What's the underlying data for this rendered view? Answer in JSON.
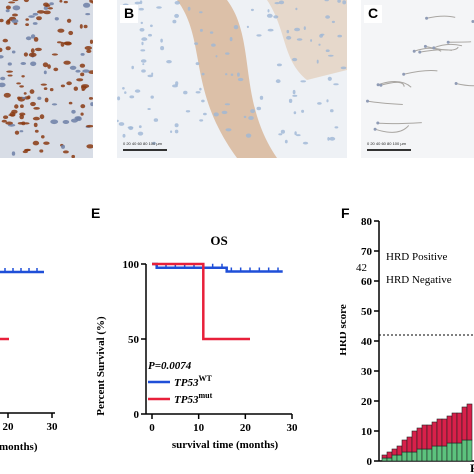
{
  "panels": {
    "B": {
      "letter": "B"
    },
    "C": {
      "letter": "C"
    },
    "E": {
      "letter": "E"
    },
    "F": {
      "letter": "F"
    }
  },
  "scale_bar": {
    "B_text": "0  20  40  60  80 100 µm",
    "C_text": "0  20  40  60  80 100 µm"
  },
  "partial_left": {
    "tick_20": "20",
    "tick_30": "30",
    "xlabel_fragment": "months)"
  },
  "colors": {
    "wt": "#1f4fd8",
    "mut": "#e8203a",
    "bar_green": "#5cc27d",
    "bar_red": "#d8204a",
    "ihc_brown": "#8a3a12",
    "ihc_blue": "#9db7d6"
  },
  "chart_data": [
    {
      "type": "line",
      "panel": "E",
      "title": "OS",
      "xlabel": "survival time (months)",
      "ylabel": "Percent Survival (%)",
      "xlim": [
        0,
        30
      ],
      "ylim": [
        0,
        100
      ],
      "x_ticks": [
        "0",
        "10",
        "20",
        "30"
      ],
      "y_ticks": [
        "0",
        "50",
        "100"
      ],
      "p_value": "P=0.0074",
      "series": [
        {
          "name": "TP53 WT",
          "name_base": "TP53",
          "name_sup": "WT",
          "steps": [
            [
              0,
              100
            ],
            [
              1,
              100
            ],
            [
              1,
              97.5
            ],
            [
              16,
              97.5
            ],
            [
              16,
              95
            ],
            [
              28,
              95
            ]
          ],
          "censor_x": [
            3,
            5,
            7,
            9,
            11,
            13,
            15,
            17,
            19,
            21,
            23,
            25,
            27
          ]
        },
        {
          "name": "TP53 mut",
          "name_base": "TP53",
          "name_sup": "mut",
          "steps": [
            [
              0,
              100
            ],
            [
              11,
              100
            ],
            [
              11,
              50
            ],
            [
              21,
              50
            ]
          ],
          "censor_x": []
        }
      ]
    },
    {
      "type": "bar",
      "panel": "F",
      "ylabel": "HRD score",
      "ylim": [
        0,
        80
      ],
      "y_ticks": [
        "0",
        "10",
        "20",
        "30",
        "40",
        "50",
        "60",
        "70",
        "80"
      ],
      "threshold": 42,
      "threshold_label": "42",
      "annotations": [
        "HRD Positive",
        "HRD Negative"
      ],
      "x_label_fragment": "P",
      "stacks": [
        {
          "green": 1,
          "red": 1
        },
        {
          "green": 1,
          "red": 2
        },
        {
          "green": 2,
          "red": 2
        },
        {
          "green": 2,
          "red": 3
        },
        {
          "green": 3,
          "red": 4
        },
        {
          "green": 3,
          "red": 5
        },
        {
          "green": 3,
          "red": 7
        },
        {
          "green": 4,
          "red": 7
        },
        {
          "green": 4,
          "red": 8
        },
        {
          "green": 4,
          "red": 8
        },
        {
          "green": 5,
          "red": 8
        },
        {
          "green": 5,
          "red": 9
        },
        {
          "green": 5,
          "red": 9
        },
        {
          "green": 6,
          "red": 9
        },
        {
          "green": 6,
          "red": 10
        },
        {
          "green": 6,
          "red": 10
        },
        {
          "green": 7,
          "red": 11
        },
        {
          "green": 7,
          "red": 12
        }
      ]
    }
  ]
}
